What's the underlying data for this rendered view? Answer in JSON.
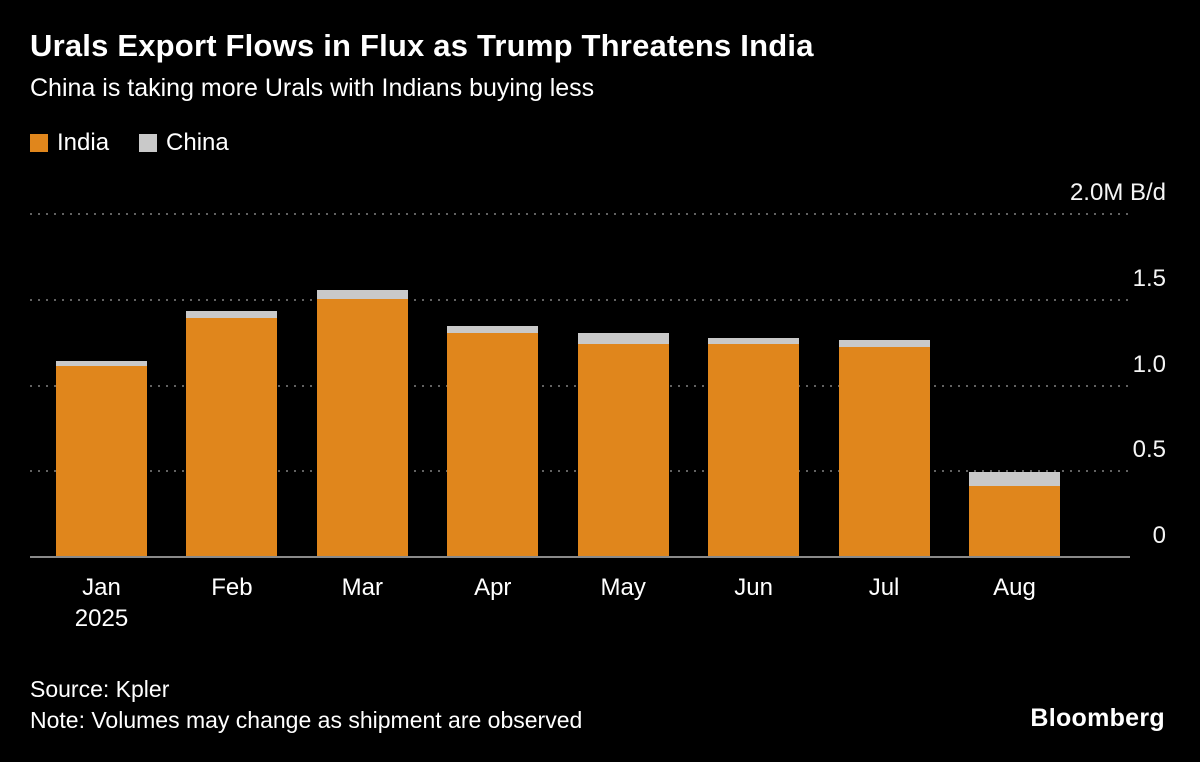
{
  "header": {
    "title": "Urals Export Flows in Flux as Trump Threatens India",
    "subtitle": "China is taking more Urals with Indians buying less"
  },
  "legend": [
    {
      "label": "India",
      "color": "#E0861C"
    },
    {
      "label": "China",
      "color": "#C9C9C9"
    }
  ],
  "footer": {
    "source": "Source: Kpler",
    "note": "Note: Volumes may change as shipment are observed",
    "brand": "Bloomberg"
  },
  "chart_data": {
    "type": "bar",
    "stacked": true,
    "title": "Urals Export Flows in Flux as Trump Threatens India",
    "subtitle": "China is taking more Urals with Indians buying less",
    "unit": "M B/d",
    "categories": [
      "Jan",
      "Feb",
      "Mar",
      "Apr",
      "May",
      "Jun",
      "Jul",
      "Aug"
    ],
    "category_sublabels": [
      "2025",
      "",
      "",
      "",
      "",
      "",
      "",
      ""
    ],
    "series": [
      {
        "name": "India",
        "color": "#E0861C",
        "values": [
          1.12,
          1.4,
          1.51,
          1.31,
          1.25,
          1.25,
          1.23,
          0.42
        ]
      },
      {
        "name": "China",
        "color": "#C9C9C9",
        "values": [
          0.03,
          0.04,
          0.05,
          0.04,
          0.06,
          0.03,
          0.04,
          0.08
        ]
      }
    ],
    "ylim": [
      0,
      2.0
    ],
    "yticks": [
      0,
      0.5,
      1.0,
      1.5,
      2.0
    ],
    "ytick_labels": [
      "0",
      "0.5",
      "1.0",
      "1.5",
      "2.0M B/d"
    ],
    "xlabel": "",
    "ylabel": "M B/d",
    "grid": "horizontal-dotted",
    "legend_position": "top-left",
    "background": "#000000"
  }
}
